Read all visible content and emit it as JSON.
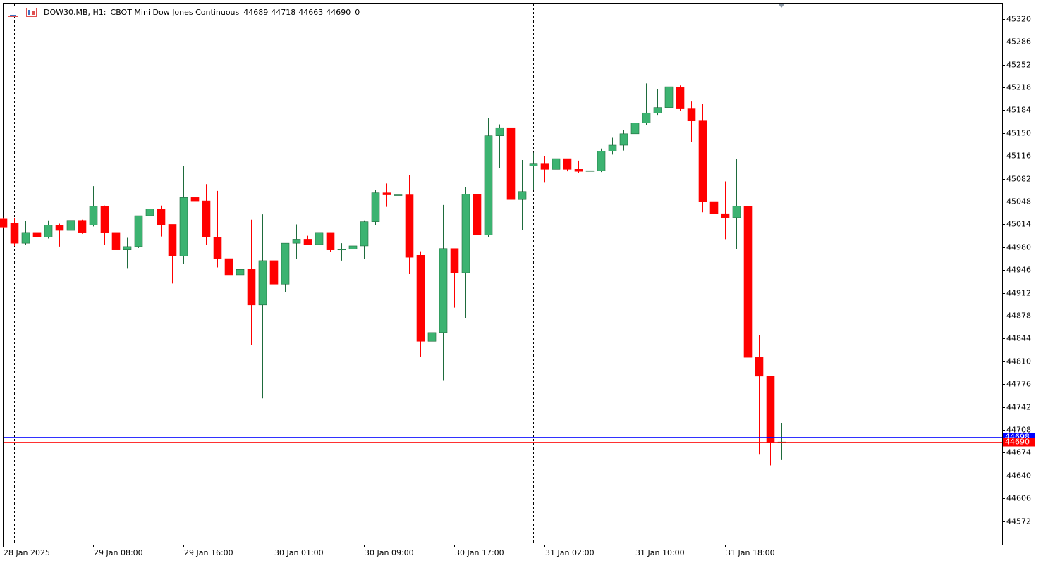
{
  "chart_data": {
    "type": "candlestick",
    "header": {
      "symbol": "DOW30.MB, H1:",
      "description": "CBOT Mini Dow Jones Continuous",
      "open": 44689,
      "high": 44718,
      "low": 44663,
      "close": 44690,
      "spread": 0
    },
    "categories": [
      "28 Jan 2025",
      null,
      null,
      null,
      null,
      null,
      null,
      null,
      "29 Jan 08:00",
      null,
      null,
      null,
      null,
      null,
      null,
      null,
      "29 Jan 16:00",
      null,
      null,
      null,
      null,
      null,
      null,
      null,
      "30 Jan 01:00",
      null,
      null,
      null,
      null,
      null,
      null,
      null,
      "30 Jan 09:00",
      null,
      null,
      null,
      null,
      null,
      null,
      null,
      "30 Jan 17:00",
      null,
      null,
      null,
      null,
      null,
      null,
      null,
      "31 Jan 02:00",
      null,
      null,
      null,
      null,
      null,
      null,
      null,
      "31 Jan 10:00",
      null,
      null,
      null,
      null,
      null,
      null,
      null,
      "31 Jan 18:00",
      null,
      null,
      null,
      null,
      null
    ],
    "open": [
      45022,
      45016,
      44986,
      45002,
      44995,
      45013,
      45005,
      45020,
      45013,
      45041,
      45002,
      44976,
      44981,
      45027,
      45037,
      45014,
      44967,
      45054,
      45049,
      44995,
      44963,
      44939,
      44947,
      44894,
      44960,
      44925,
      44986,
      44992,
      44984,
      45002,
      44976,
      44977,
      44982,
      45018,
      45061,
      45058,
      45058,
      44968,
      44840,
      44853,
      44978,
      44942,
      45059,
      44998,
      45146,
      45158,
      45051,
      45101,
      45104,
      45096,
      45112,
      45096,
      45093,
      45094,
      45123,
      45132,
      45149,
      45165,
      45180,
      45188,
      45218,
      45187,
      45168,
      45048,
      45030,
      45024,
      45041,
      44816,
      44788,
      44689
    ],
    "high": [
      45024,
      45023,
      45019,
      45002,
      45020,
      45015,
      45030,
      45021,
      45071,
      45042,
      45004,
      44994,
      45027,
      45051,
      45042,
      45014,
      45101,
      45136,
      45074,
      45064,
      44997,
      45004,
      45021,
      45029,
      44975,
      44986,
      45014,
      44997,
      45007,
      45002,
      44986,
      44985,
      45020,
      45065,
      45075,
      45086,
      45088,
      44974,
      44853,
      45043,
      44978,
      45069,
      45059,
      45173,
      45163,
      45187,
      45110,
      45121,
      45116,
      45116,
      45112,
      45109,
      45107,
      45127,
      45143,
      45155,
      45173,
      45224,
      45216,
      45220,
      45221,
      45197,
      45193,
      45115,
      45078,
      45112,
      45072,
      44849,
      44788,
      44718
    ],
    "low": [
      45008,
      44982,
      44984,
      44991,
      44993,
      44981,
      45004,
      45000,
      45011,
      44983,
      44973,
      44948,
      44979,
      45013,
      44996,
      44926,
      44955,
      45032,
      44983,
      44950,
      44839,
      44746,
      44835,
      44755,
      44855,
      44913,
      44962,
      44984,
      44976,
      44973,
      44960,
      44962,
      44963,
      45013,
      45040,
      45051,
      44940,
      44817,
      44782,
      44782,
      44890,
      44874,
      44929,
      44995,
      45098,
      44803,
      45006,
      45065,
      45076,
      45028,
      45093,
      45090,
      45084,
      45092,
      45118,
      45124,
      45131,
      45162,
      45177,
      45187,
      45183,
      45137,
      45032,
      45023,
      44992,
      44977,
      44750,
      44671,
      44655,
      44663
    ],
    "close": [
      45010,
      44986,
      45002,
      44995,
      45013,
      45005,
      45020,
      45002,
      45041,
      45002,
      44976,
      44981,
      45027,
      45037,
      45013,
      44967,
      45054,
      45049,
      44995,
      44963,
      44939,
      44947,
      44894,
      44960,
      44925,
      44986,
      44992,
      44984,
      45002,
      44976,
      44977,
      44982,
      45018,
      45061,
      45058,
      45058,
      44965,
      44840,
      44853,
      44978,
      44942,
      45059,
      44998,
      45146,
      45158,
      45051,
      45063,
      45104,
      45096,
      45112,
      45096,
      45093,
      45094,
      45123,
      45132,
      45149,
      45165,
      45180,
      45188,
      45219,
      45187,
      45168,
      45048,
      45030,
      45024,
      45041,
      44816,
      44788,
      44689,
      44690
    ],
    "up_color": "#3cb371",
    "down_color": "#ff0000",
    "ylim": [
      44537,
      45344
    ],
    "yticks": [
      45320,
      45286,
      45252,
      45218,
      45184,
      45150,
      45116,
      45082,
      45048,
      45014,
      44980,
      44946,
      44912,
      44878,
      44844,
      44810,
      44776,
      44742,
      44708,
      44674,
      44640,
      44606,
      44572
    ],
    "ask": 44698,
    "ask_color": "#0000ff",
    "bid": 44690,
    "bid_color": "#ff0000"
  }
}
